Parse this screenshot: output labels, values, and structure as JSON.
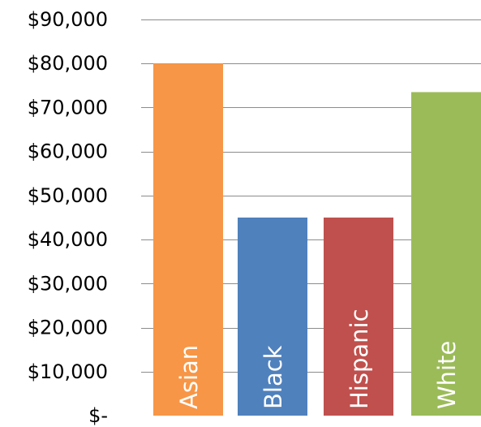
{
  "chart_data": {
    "type": "bar",
    "categories": [
      "Asian",
      "Black",
      "Hispanic",
      "White"
    ],
    "values": [
      80000,
      45000,
      45000,
      73500
    ],
    "colors": [
      "#F79646",
      "#4F81BD",
      "#C0504D",
      "#9BBB59"
    ],
    "ylim": [
      0,
      90000
    ],
    "y_ticks": [
      0,
      10000,
      20000,
      30000,
      40000,
      50000,
      60000,
      70000,
      80000,
      90000
    ],
    "y_tick_labels": [
      "$-",
      "$10,000",
      "$20,000",
      "$30,000",
      "$40,000",
      "$50,000",
      "$60,000",
      "$70,000",
      "$80,000",
      "$90,000"
    ],
    "grid": true,
    "legend": false,
    "labels_inside_bars": true,
    "title": "",
    "xlabel": "",
    "ylabel": ""
  }
}
